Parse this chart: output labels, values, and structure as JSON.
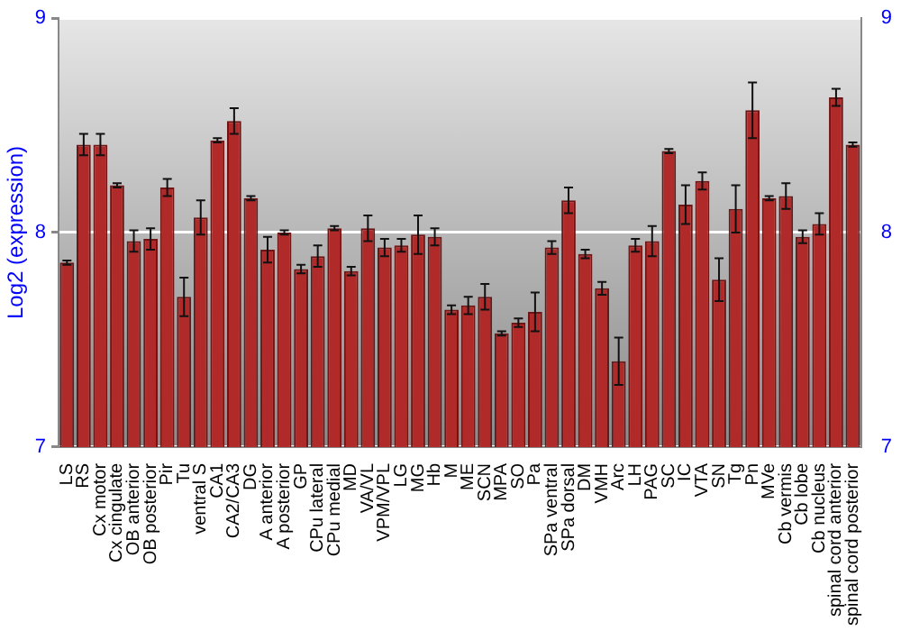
{
  "chart_data": {
    "type": "bar",
    "ylabel": "Log2 (expression)",
    "categories": [
      "LS",
      "RS",
      "Cx motor",
      "Cx cingulate",
      "OB anterior",
      "OB posterior",
      "Pir",
      "Tu",
      "ventral S",
      "CA1",
      "CA2/CA3",
      "DG",
      "A anterior",
      "A posterior",
      "GP",
      "CPu lateral",
      "CPu medial",
      "MD",
      "VA/VL",
      "VPM/VPL",
      "LG",
      "MG",
      "Hb",
      "M",
      "ME",
      "SCN",
      "MPA",
      "SO",
      "Pa",
      "SPa ventral",
      "SPa dorsal",
      "DM",
      "VMH",
      "Arc",
      "LH",
      "PAG",
      "SC",
      "IC",
      "VTA",
      "SN",
      "Tg",
      "Pn",
      "MVe",
      "Cb vermis",
      "Cb lobe",
      "Cb nucleus",
      "spinal cord anterior",
      "spinal cord posterior"
    ],
    "values": [
      7.86,
      8.41,
      8.41,
      8.22,
      7.96,
      7.97,
      8.21,
      7.7,
      8.07,
      8.43,
      8.52,
      8.16,
      7.92,
      8.0,
      7.83,
      7.89,
      8.02,
      7.82,
      8.02,
      7.93,
      7.94,
      7.99,
      7.98,
      7.64,
      7.66,
      7.7,
      7.53,
      7.58,
      7.63,
      7.93,
      8.15,
      7.9,
      7.74,
      7.4,
      7.94,
      7.96,
      8.38,
      8.13,
      8.24,
      7.78,
      8.11,
      8.57,
      8.16,
      8.17,
      7.98,
      8.04,
      8.63,
      8.41
    ],
    "errors": [
      0.01,
      0.05,
      0.05,
      0.01,
      0.05,
      0.05,
      0.04,
      0.09,
      0.08,
      0.01,
      0.06,
      0.01,
      0.06,
      0.01,
      0.02,
      0.05,
      0.01,
      0.02,
      0.06,
      0.04,
      0.03,
      0.09,
      0.04,
      0.02,
      0.04,
      0.06,
      0.01,
      0.02,
      0.09,
      0.03,
      0.06,
      0.02,
      0.03,
      0.11,
      0.03,
      0.07,
      0.01,
      0.09,
      0.04,
      0.1,
      0.11,
      0.13,
      0.01,
      0.06,
      0.03,
      0.05,
      0.04,
      0.01
    ],
    "color": "#b02a2a",
    "ylim": [
      7,
      9
    ],
    "yticks": [
      7,
      8,
      9
    ],
    "y2lim": [
      7,
      9
    ],
    "y2ticks": [
      7,
      8,
      9
    ],
    "grid": "y",
    "legend": false
  }
}
